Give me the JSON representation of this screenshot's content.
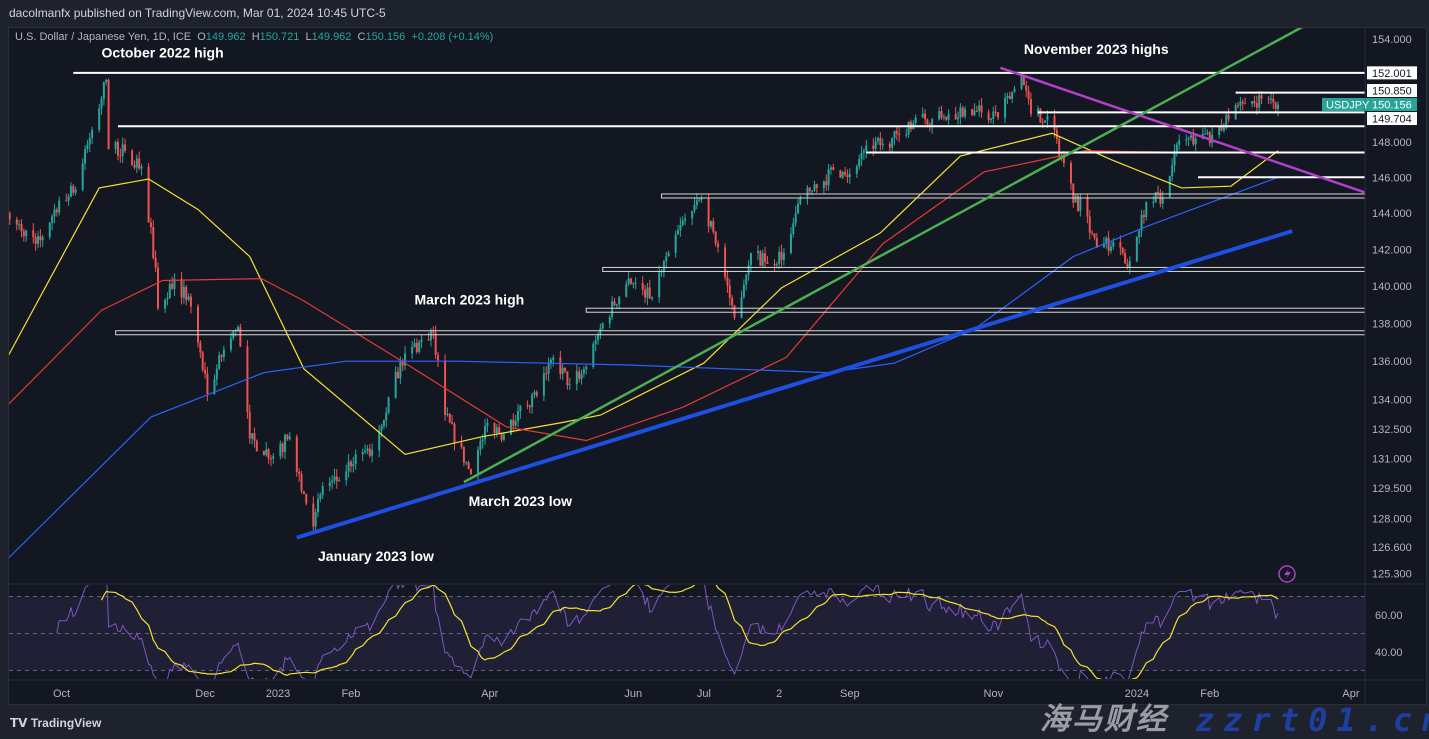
{
  "header": {
    "published": "dacolmanfx published on TradingView.com, Mar 01, 2024 10:45 UTC-5",
    "symbol_desc": "U.S. Dollar / Japanese Yen, 1D, ICE",
    "o_label": "O",
    "o": "149.962",
    "h_label": "H",
    "h": "150.721",
    "l_label": "L",
    "l": "149.962",
    "c_label": "C",
    "c": "150.156",
    "change": "+0.208 (+0.14%)"
  },
  "footer": {
    "brand": "TradingView",
    "logo_text": "TV"
  },
  "watermark": {
    "line1": "海马财经",
    "line2": "zzrt01.cn"
  },
  "colors": {
    "up": "#26a69a",
    "down": "#ef5350",
    "sma50": "#f5e12f",
    "sma100": "#e53935",
    "sma200": "#2962ff",
    "rsi": "#7e57c2",
    "rsi_signal": "#f5e12f",
    "accent": "#26a69a",
    "trend_support": "#1f4fe0",
    "trend_green": "#4caf50",
    "trend_magenta": "#b040c8"
  },
  "chart_data": {
    "type": "candlestick",
    "symbol": "USDJPY",
    "last_price": "150.156",
    "y_scale": "log",
    "ylim": [
      125.3,
      154.0
    ],
    "y_ticks": [
      "154.000",
      "148.000",
      "146.000",
      "144.000",
      "142.000",
      "140.000",
      "138.000",
      "136.000",
      "134.000",
      "132.500",
      "131.000",
      "129.500",
      "128.000",
      "126.600",
      "125.300"
    ],
    "x_ticks": [
      {
        "label": "Oct",
        "date": "2022-10-01"
      },
      {
        "label": "Dec",
        "date": "2022-12-01"
      },
      {
        "label": "2023",
        "date": "2023-01-01"
      },
      {
        "label": "Feb",
        "date": "2023-02-01"
      },
      {
        "label": "Apr",
        "date": "2023-04-01"
      },
      {
        "label": "Jun",
        "date": "2023-06-01"
      },
      {
        "label": "Jul",
        "date": "2023-07-01"
      },
      {
        "label": "2",
        "date": "2023-08-02"
      },
      {
        "label": "Sep",
        "date": "2023-09-01"
      },
      {
        "label": "Nov",
        "date": "2023-11-01"
      },
      {
        "label": "2024",
        "date": "2024-01-01"
      },
      {
        "label": "Feb",
        "date": "2024-02-01"
      },
      {
        "label": "Apr",
        "date": "2024-04-01"
      }
    ],
    "closes": [
      [
        "2022-09-08",
        144.0
      ],
      [
        "2022-09-14",
        143.0
      ],
      [
        "2022-09-22",
        142.5
      ],
      [
        "2022-09-30",
        144.7
      ],
      [
        "2022-10-07",
        145.3
      ],
      [
        "2022-10-14",
        148.7
      ],
      [
        "2022-10-20",
        151.6
      ],
      [
        "2022-10-21",
        147.6
      ],
      [
        "2022-10-28",
        147.5
      ],
      [
        "2022-11-04",
        146.6
      ],
      [
        "2022-11-10",
        141.0
      ],
      [
        "2022-11-11",
        138.8
      ],
      [
        "2022-11-18",
        140.4
      ],
      [
        "2022-11-25",
        138.9
      ],
      [
        "2022-12-02",
        134.3
      ],
      [
        "2022-12-09",
        136.6
      ],
      [
        "2022-12-15",
        137.8
      ],
      [
        "2022-12-20",
        132.0
      ],
      [
        "2022-12-30",
        131.1
      ],
      [
        "2023-01-06",
        132.1
      ],
      [
        "2023-01-12",
        129.2
      ],
      [
        "2023-01-16",
        127.6
      ],
      [
        "2023-01-20",
        129.6
      ],
      [
        "2023-01-27",
        129.9
      ],
      [
        "2023-02-03",
        131.2
      ],
      [
        "2023-02-10",
        131.4
      ],
      [
        "2023-02-17",
        134.1
      ],
      [
        "2023-02-24",
        136.4
      ],
      [
        "2023-03-08",
        137.5
      ],
      [
        "2023-03-13",
        133.2
      ],
      [
        "2023-03-24",
        130.2
      ],
      [
        "2023-03-31",
        132.8
      ],
      [
        "2023-04-07",
        132.2
      ],
      [
        "2023-04-14",
        133.7
      ],
      [
        "2023-04-21",
        134.2
      ],
      [
        "2023-04-28",
        136.2
      ],
      [
        "2023-05-05",
        134.8
      ],
      [
        "2023-05-12",
        135.7
      ],
      [
        "2023-05-19",
        138.0
      ],
      [
        "2023-05-30",
        140.4
      ],
      [
        "2023-06-09",
        139.4
      ],
      [
        "2023-06-16",
        141.8
      ],
      [
        "2023-06-23",
        143.7
      ],
      [
        "2023-06-30",
        144.8
      ],
      [
        "2023-07-07",
        142.1
      ],
      [
        "2023-07-14",
        138.3
      ],
      [
        "2023-07-21",
        141.8
      ],
      [
        "2023-07-28",
        141.2
      ],
      [
        "2023-08-04",
        141.8
      ],
      [
        "2023-08-11",
        144.9
      ],
      [
        "2023-08-18",
        145.4
      ],
      [
        "2023-08-25",
        146.4
      ],
      [
        "2023-09-01",
        146.2
      ],
      [
        "2023-09-08",
        147.8
      ],
      [
        "2023-09-15",
        147.9
      ],
      [
        "2023-09-22",
        148.4
      ],
      [
        "2023-09-29",
        149.4
      ],
      [
        "2023-10-06",
        149.3
      ],
      [
        "2023-10-13",
        149.6
      ],
      [
        "2023-10-20",
        149.9
      ],
      [
        "2023-10-27",
        149.7
      ],
      [
        "2023-11-03",
        149.4
      ],
      [
        "2023-11-13",
        151.8
      ],
      [
        "2023-11-17",
        149.6
      ],
      [
        "2023-11-24",
        149.5
      ],
      [
        "2023-12-01",
        146.8
      ],
      [
        "2023-12-07",
        144.1
      ],
      [
        "2023-12-08",
        144.9
      ],
      [
        "2023-12-15",
        142.1
      ],
      [
        "2023-12-22",
        142.4
      ],
      [
        "2023-12-28",
        141.0
      ],
      [
        "2024-01-05",
        144.6
      ],
      [
        "2024-01-12",
        144.9
      ],
      [
        "2024-01-19",
        148.1
      ],
      [
        "2024-01-26",
        148.2
      ],
      [
        "2024-02-02",
        148.4
      ],
      [
        "2024-02-09",
        149.3
      ],
      [
        "2024-02-16",
        150.2
      ],
      [
        "2024-02-23",
        150.5
      ],
      [
        "2024-02-29",
        149.9
      ],
      [
        "2024-03-01",
        150.156
      ]
    ],
    "moving_averages": [
      {
        "period": 50,
        "color": "#f5e12f",
        "points": [
          [
            "2022-09-08",
            136.2
          ],
          [
            "2022-10-17",
            145.4
          ],
          [
            "2022-11-07",
            145.9
          ],
          [
            "2022-11-28",
            144.2
          ],
          [
            "2022-12-20",
            141.6
          ],
          [
            "2023-01-12",
            135.6
          ],
          [
            "2023-02-24",
            131.2
          ],
          [
            "2023-03-29",
            132.1
          ],
          [
            "2023-05-01",
            132.8
          ],
          [
            "2023-05-18",
            133.2
          ],
          [
            "2023-07-01",
            135.9
          ],
          [
            "2023-08-03",
            139.9
          ],
          [
            "2023-09-14",
            142.9
          ],
          [
            "2023-10-18",
            147.2
          ],
          [
            "2023-11-26",
            148.5
          ],
          [
            "2023-12-21",
            147.0
          ],
          [
            "2024-01-20",
            145.4
          ],
          [
            "2024-02-10",
            145.5
          ],
          [
            "2024-03-01",
            147.5
          ]
        ]
      },
      {
        "period": 100,
        "color": "#e53935",
        "points": [
          [
            "2022-09-08",
            133.7
          ],
          [
            "2022-10-18",
            138.7
          ],
          [
            "2022-11-13",
            140.3
          ],
          [
            "2022-12-25",
            140.4
          ],
          [
            "2023-01-12",
            139.2
          ],
          [
            "2023-02-24",
            135.9
          ],
          [
            "2023-04-08",
            132.6
          ],
          [
            "2023-05-12",
            131.9
          ],
          [
            "2023-06-22",
            133.6
          ],
          [
            "2023-08-05",
            136.2
          ],
          [
            "2023-09-15",
            142.3
          ],
          [
            "2023-10-28",
            146.3
          ],
          [
            "2023-12-10",
            147.5
          ],
          [
            "2024-01-22",
            147.4
          ],
          [
            "2024-03-01",
            147.4
          ]
        ]
      },
      {
        "period": 200,
        "color": "#2962ff",
        "points": [
          [
            "2022-09-08",
            126.0
          ],
          [
            "2022-11-08",
            133.1
          ],
          [
            "2022-12-26",
            135.4
          ],
          [
            "2023-01-30",
            136.0
          ],
          [
            "2023-03-18",
            136.0
          ],
          [
            "2023-05-30",
            135.8
          ],
          [
            "2023-08-22",
            135.4
          ],
          [
            "2023-09-20",
            135.9
          ],
          [
            "2023-10-24",
            137.7
          ],
          [
            "2023-12-05",
            141.6
          ],
          [
            "2024-01-06",
            143.3
          ],
          [
            "2024-03-01",
            146.0
          ]
        ]
      }
    ],
    "horizontal_levels": [
      {
        "price": 152.001,
        "from": "2022-10-06",
        "label": "152.001"
      },
      {
        "price": 150.85,
        "from": "2024-02-12",
        "label": "150.850"
      },
      {
        "price": 149.704,
        "from": "2023-11-20",
        "label": "149.704"
      },
      {
        "price": 148.9,
        "from": "2022-10-25"
      },
      {
        "price": 147.4,
        "from": "2023-09-08"
      },
      {
        "price": 146.0,
        "from": "2024-01-27"
      },
      {
        "price": 144.95,
        "from": "2023-06-13",
        "double": true
      },
      {
        "price": 140.9,
        "from": "2023-05-19",
        "double": true
      },
      {
        "price": 138.7,
        "from": "2023-05-12",
        "double": true
      },
      {
        "price": 137.5,
        "from": "2022-10-24",
        "double": true
      }
    ],
    "trendlines": [
      {
        "from": [
          "2023-01-09",
          127.05
        ],
        "to": [
          "2024-03-07",
          143.0
        ],
        "color": "#1f4fe0"
      },
      {
        "from": [
          "2023-03-21",
          129.8
        ],
        "to": [
          "2024-03-19",
          155.3
        ],
        "color": "#4caf50"
      },
      {
        "from": [
          "2023-11-04",
          152.3
        ],
        "to": [
          "2024-04-08",
          145.1
        ],
        "color": "#b040c8"
      }
    ],
    "annotations": [
      {
        "text": "October 2022 high",
        "date": "2022-10-18",
        "price": 152.9
      },
      {
        "text": "November 2023 highs",
        "date": "2023-11-14",
        "price": 153.1
      },
      {
        "text": "March 2023 high",
        "date": "2023-02-28",
        "price": 139.0
      },
      {
        "text": "March 2023 low",
        "date": "2023-03-23",
        "price": 128.6
      },
      {
        "text": "January 2023 low",
        "date": "2023-01-18",
        "price": 125.9
      }
    ],
    "rsi": {
      "upper": 70,
      "lower": 30,
      "ticks": [
        "60.00",
        "40.00"
      ]
    }
  }
}
